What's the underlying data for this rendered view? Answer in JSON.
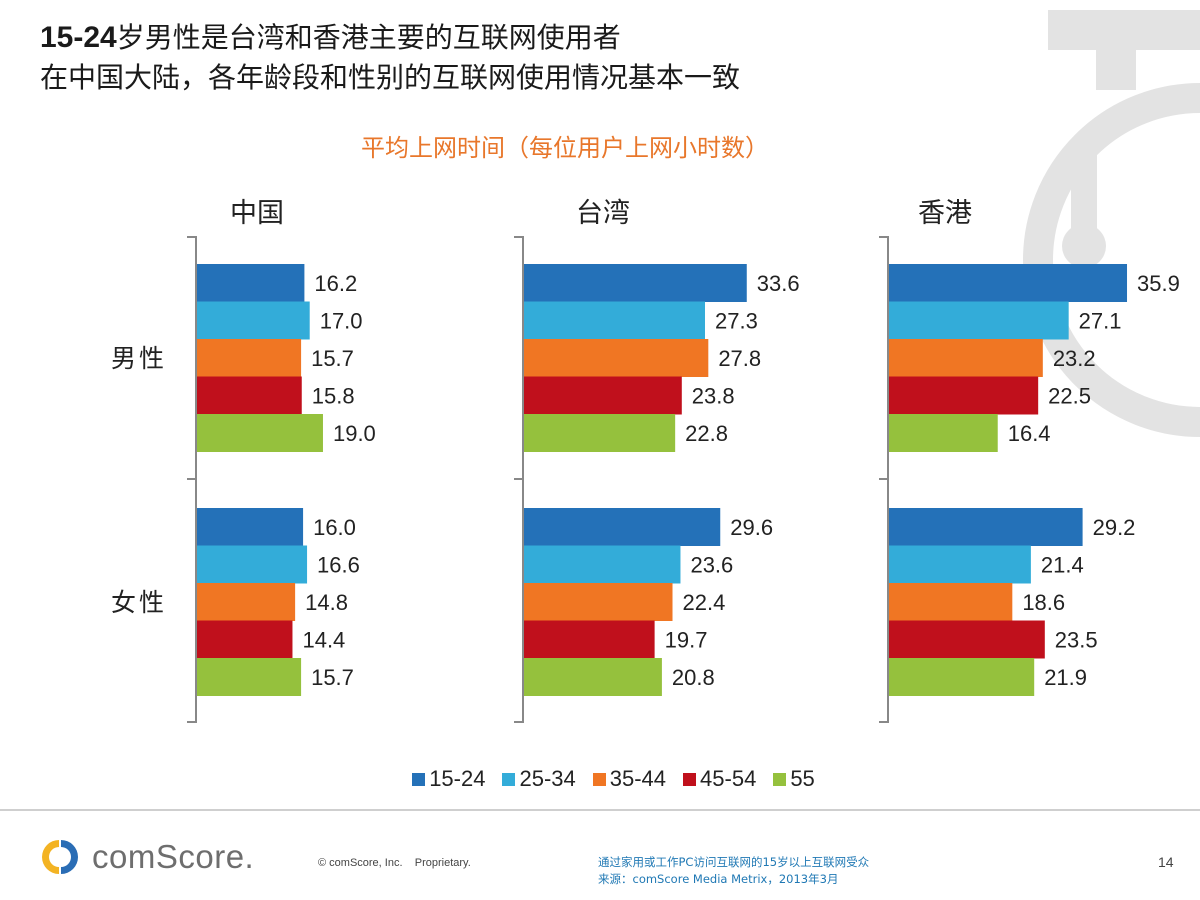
{
  "header": {
    "title_line1_lead": "15-24",
    "title_line1_rest": "岁男性是台湾和香港主要的互联网使用者",
    "title_line2": "在中国大陆，各年龄段和性别的互联网使用情况基本一致",
    "subtitle": "平均上网时间（每位用户上网小时数）"
  },
  "chart_data": {
    "type": "bar",
    "orientation": "horizontal",
    "title": "平均上网时间（每位用户上网小时数）",
    "panels": [
      "中国",
      "台湾",
      "香港"
    ],
    "groups": [
      "男性",
      "女性"
    ],
    "series": [
      {
        "name": "15-24",
        "color": "#2471b8",
        "values": {
          "中国": [
            16.2,
            16.0
          ],
          "台湾": [
            33.6,
            29.6
          ],
          "香港": [
            35.9,
            29.2
          ]
        }
      },
      {
        "name": "25-34",
        "color": "#33acd9",
        "values": {
          "中国": [
            17.0,
            16.6
          ],
          "台湾": [
            27.3,
            23.6
          ],
          "香港": [
            27.1,
            21.4
          ]
        }
      },
      {
        "name": "35-44",
        "color": "#f07623",
        "values": {
          "中国": [
            15.7,
            14.8
          ],
          "台湾": [
            27.8,
            22.4
          ],
          "香港": [
            23.2,
            18.6
          ]
        }
      },
      {
        "name": "45-54",
        "color": "#c0101c",
        "values": {
          "中国": [
            15.8,
            14.4
          ],
          "台湾": [
            23.8,
            19.7
          ],
          "香港": [
            22.5,
            23.5
          ]
        }
      },
      {
        "name": "55",
        "color": "#95c13d",
        "values": {
          "中国": [
            19.0,
            15.7
          ],
          "台湾": [
            22.8,
            20.8
          ],
          "香港": [
            16.4,
            21.9
          ]
        }
      }
    ],
    "xlim": [
      0,
      36
    ],
    "legend_position": "bottom"
  },
  "footer": {
    "logo_text": "comScore.",
    "copyright": "© comScore, Inc.    Proprietary.",
    "source_line1": "通过家用或工作PC访问互联网的15岁以上互联网受众",
    "source_line2": "来源：comScore Media Metrix，2013年3月",
    "page_number": "14"
  },
  "colors": {
    "accent_orange": "#e8772b",
    "source_blue": "#1f78b4",
    "watermark": "#e3e3e3",
    "axis": "#888888",
    "logo_yellow": "#f3b323",
    "logo_blue": "#2a6db5"
  }
}
